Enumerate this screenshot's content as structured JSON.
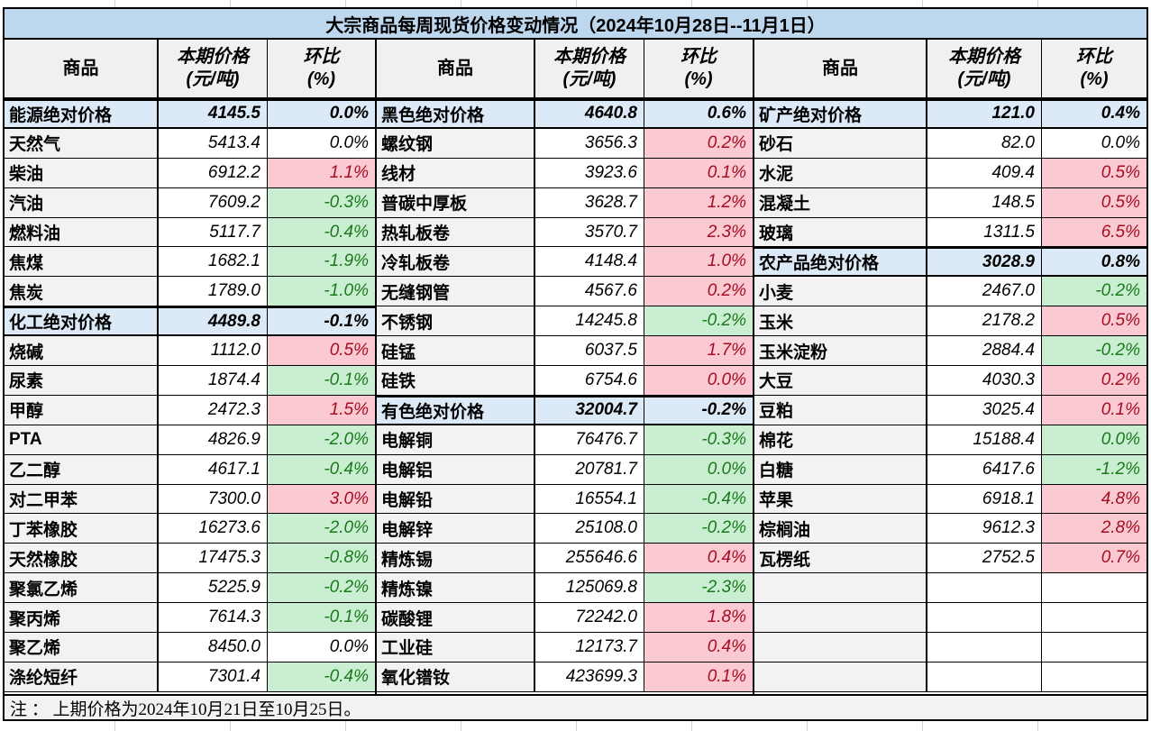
{
  "title": "大宗商品每周现货价格变动情况（2024年10月28日--11月1日）",
  "columns": {
    "commodity": "商品",
    "price_line1": "本期价格",
    "price_line2": "(元/吨)",
    "wow_line1": "环比",
    "wow_line2": "(%)"
  },
  "note": "注 ： 上期价格为2024年10月21日至10月25日。",
  "colors": {
    "header_blue": "#BDD7EE",
    "section_blue": "#DCE9F6",
    "label_gray": "#F2F2F2",
    "up_bg": "#FBC9D2",
    "up_text": "#A50D22",
    "down_bg": "#C9EED2",
    "down_text": "#1A7A1A"
  },
  "groups": [
    {
      "rows": [
        {
          "name": "能源绝对价格",
          "price": "4145.5",
          "wow": "0.0%",
          "tone": "section"
        },
        {
          "name": "天然气",
          "price": "5413.4",
          "wow": "0.0%",
          "tone": "flat"
        },
        {
          "name": "柴油",
          "price": "6912.2",
          "wow": "1.1%",
          "tone": "up"
        },
        {
          "name": "汽油",
          "price": "7609.2",
          "wow": "-0.3%",
          "tone": "down"
        },
        {
          "name": "燃料油",
          "price": "5117.7",
          "wow": "-0.4%",
          "tone": "down"
        },
        {
          "name": "焦煤",
          "price": "1682.1",
          "wow": "-1.9%",
          "tone": "down"
        },
        {
          "name": "焦炭",
          "price": "1789.0",
          "wow": "-1.0%",
          "tone": "down"
        },
        {
          "name": "化工绝对价格",
          "price": "4489.8",
          "wow": "-0.1%",
          "tone": "section"
        },
        {
          "name": "烧碱",
          "price": "1112.0",
          "wow": "0.5%",
          "tone": "up"
        },
        {
          "name": "尿素",
          "price": "1874.4",
          "wow": "-0.1%",
          "tone": "down"
        },
        {
          "name": "甲醇",
          "price": "2472.3",
          "wow": "1.5%",
          "tone": "up"
        },
        {
          "name": "PTA",
          "price": "4826.9",
          "wow": "-2.0%",
          "tone": "down"
        },
        {
          "name": "乙二醇",
          "price": "4617.1",
          "wow": "-0.4%",
          "tone": "down"
        },
        {
          "name": "对二甲苯",
          "price": "7300.0",
          "wow": "3.0%",
          "tone": "up"
        },
        {
          "name": "丁苯橡胶",
          "price": "16273.6",
          "wow": "-2.0%",
          "tone": "down"
        },
        {
          "name": "天然橡胶",
          "price": "17475.3",
          "wow": "-0.8%",
          "tone": "down"
        },
        {
          "name": "聚氯乙烯",
          "price": "5225.9",
          "wow": "-0.2%",
          "tone": "down"
        },
        {
          "name": "聚丙烯",
          "price": "7614.3",
          "wow": "-0.1%",
          "tone": "down"
        },
        {
          "name": "聚乙烯",
          "price": "8450.0",
          "wow": "0.0%",
          "tone": "flat"
        },
        {
          "name": "涤纶短纤",
          "price": "7301.4",
          "wow": "-0.4%",
          "tone": "down"
        }
      ]
    },
    {
      "rows": [
        {
          "name": "黑色绝对价格",
          "price": "4640.8",
          "wow": "0.6%",
          "tone": "section"
        },
        {
          "name": "螺纹钢",
          "price": "3656.3",
          "wow": "0.2%",
          "tone": "up"
        },
        {
          "name": "线材",
          "price": "3923.6",
          "wow": "0.1%",
          "tone": "up"
        },
        {
          "name": "普碳中厚板",
          "price": "3628.7",
          "wow": "1.2%",
          "tone": "up"
        },
        {
          "name": "热轧板卷",
          "price": "3570.7",
          "wow": "2.3%",
          "tone": "up"
        },
        {
          "name": "冷轧板卷",
          "price": "4148.4",
          "wow": "1.0%",
          "tone": "up"
        },
        {
          "name": "无缝钢管",
          "price": "4567.6",
          "wow": "0.2%",
          "tone": "up"
        },
        {
          "name": "不锈钢",
          "price": "14245.8",
          "wow": "-0.2%",
          "tone": "down"
        },
        {
          "name": "硅锰",
          "price": "6037.5",
          "wow": "1.7%",
          "tone": "up"
        },
        {
          "name": "硅铁",
          "price": "6754.6",
          "wow": "0.0%",
          "tone": "up"
        },
        {
          "name": "有色绝对价格",
          "price": "32004.7",
          "wow": "-0.2%",
          "tone": "section"
        },
        {
          "name": "电解铜",
          "price": "76476.7",
          "wow": "-0.3%",
          "tone": "down"
        },
        {
          "name": "电解铝",
          "price": "20781.7",
          "wow": "0.0%",
          "tone": "down"
        },
        {
          "name": "电解铅",
          "price": "16554.1",
          "wow": "-0.4%",
          "tone": "down"
        },
        {
          "name": "电解锌",
          "price": "25108.0",
          "wow": "-0.2%",
          "tone": "down"
        },
        {
          "name": "精炼锡",
          "price": "255646.6",
          "wow": "0.4%",
          "tone": "up"
        },
        {
          "name": "精炼镍",
          "price": "125069.8",
          "wow": "-2.3%",
          "tone": "down"
        },
        {
          "name": "碳酸锂",
          "price": "72242.0",
          "wow": "1.8%",
          "tone": "up"
        },
        {
          "name": "工业硅",
          "price": "12173.7",
          "wow": "0.4%",
          "tone": "up"
        },
        {
          "name": "氧化镨钕",
          "price": "423699.3",
          "wow": "0.1%",
          "tone": "up"
        }
      ]
    },
    {
      "rows": [
        {
          "name": "矿产绝对价格",
          "price": "121.0",
          "wow": "0.4%",
          "tone": "section"
        },
        {
          "name": "砂石",
          "price": "82.0",
          "wow": "0.0%",
          "tone": "flat"
        },
        {
          "name": "水泥",
          "price": "409.4",
          "wow": "0.5%",
          "tone": "up"
        },
        {
          "name": "混凝土",
          "price": "148.5",
          "wow": "0.5%",
          "tone": "up"
        },
        {
          "name": "玻璃",
          "price": "1311.5",
          "wow": "6.5%",
          "tone": "up"
        },
        {
          "name": "农产品绝对价格",
          "price": "3028.9",
          "wow": "0.8%",
          "tone": "section"
        },
        {
          "name": "小麦",
          "price": "2467.0",
          "wow": "-0.2%",
          "tone": "down"
        },
        {
          "name": "玉米",
          "price": "2178.2",
          "wow": "0.5%",
          "tone": "up"
        },
        {
          "name": "玉米淀粉",
          "price": "2884.4",
          "wow": "-0.2%",
          "tone": "down"
        },
        {
          "name": "大豆",
          "price": "4030.3",
          "wow": "0.2%",
          "tone": "up"
        },
        {
          "name": "豆粕",
          "price": "3025.4",
          "wow": "0.1%",
          "tone": "up"
        },
        {
          "name": "棉花",
          "price": "15188.4",
          "wow": "0.0%",
          "tone": "down"
        },
        {
          "name": "白糖",
          "price": "6417.6",
          "wow": "-1.2%",
          "tone": "down"
        },
        {
          "name": "苹果",
          "price": "6918.1",
          "wow": "4.8%",
          "tone": "up"
        },
        {
          "name": "棕榈油",
          "price": "9612.3",
          "wow": "2.8%",
          "tone": "up"
        },
        {
          "name": "瓦楞纸",
          "price": "2752.5",
          "wow": "0.7%",
          "tone": "up"
        },
        {
          "name": "",
          "price": "",
          "wow": "",
          "tone": "empty"
        },
        {
          "name": "",
          "price": "",
          "wow": "",
          "tone": "empty"
        },
        {
          "name": "",
          "price": "",
          "wow": "",
          "tone": "empty"
        },
        {
          "name": "",
          "price": "",
          "wow": "",
          "tone": "empty"
        }
      ]
    }
  ]
}
